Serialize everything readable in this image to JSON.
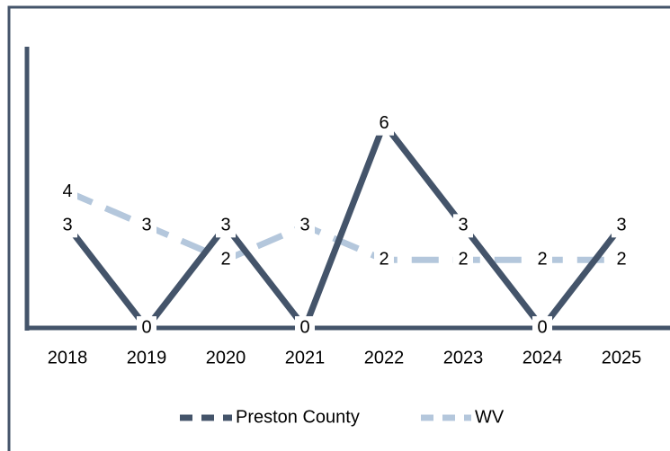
{
  "chart_data": {
    "type": "line",
    "categories": [
      "2018",
      "2019",
      "2020",
      "2021",
      "2022",
      "2023",
      "2024",
      "2025"
    ],
    "series": [
      {
        "name": "Preston County",
        "color": "#44546a",
        "values": [
          3,
          0,
          3,
          0,
          6,
          3,
          0,
          3
        ]
      },
      {
        "name": "WV",
        "color": "#b4c7dc",
        "values": [
          4,
          3,
          2,
          3,
          2,
          2,
          2,
          2
        ]
      }
    ],
    "ylim": [
      0,
      6.6
    ]
  }
}
